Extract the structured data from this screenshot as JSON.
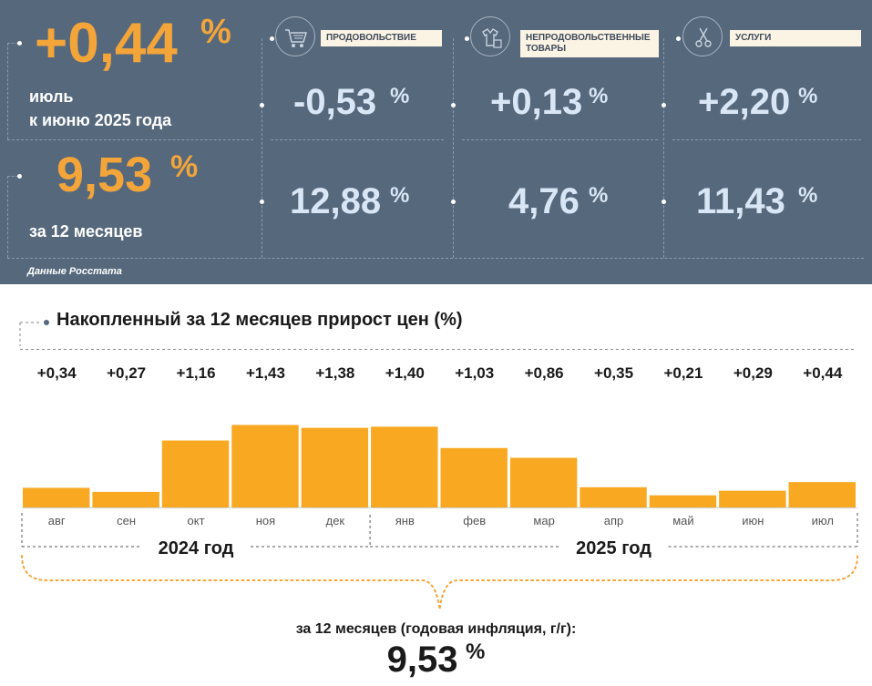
{
  "colors": {
    "panel_bg": "#56687c",
    "accent_orange": "#f3a53a",
    "light_value": "#d8e6f5",
    "bar": "#f9a822",
    "label_bg": "#fbf3e4"
  },
  "monthly": {
    "value": "+0,44",
    "unit": "%",
    "label_line1": "июль",
    "label_line2": "к июню 2025 года"
  },
  "annual": {
    "value": "9,53",
    "unit": "%",
    "label": "за 12 месяцев"
  },
  "categories": [
    {
      "name": "ПРОДОВОЛЬСТВИЕ",
      "icon": "shopping-cart-icon",
      "monthly": "-0,53",
      "annual": "12,88",
      "unit": "%"
    },
    {
      "name": "НЕПРОДОВОЛЬСТВЕННЫЕ ТОВАРЫ",
      "icon": "clothes-icon",
      "monthly": "+0,13",
      "annual": "4,76",
      "unit": "%"
    },
    {
      "name": "УСЛУГИ",
      "icon": "scissors-icon",
      "monthly": "+2,20",
      "annual": "11,43",
      "unit": "%"
    }
  ],
  "source": "Данные Росстата",
  "chart_data": {
    "type": "bar",
    "title": "Накопленный за 12 месяцев прирост цен (%)",
    "categories": [
      "авг",
      "сен",
      "окт",
      "ноя",
      "дек",
      "янв",
      "фев",
      "мар",
      "апр",
      "май",
      "июн",
      "июл"
    ],
    "values": [
      0.34,
      0.27,
      1.16,
      1.43,
      1.38,
      1.4,
      1.03,
      0.86,
      0.35,
      0.21,
      0.29,
      0.44
    ],
    "data_labels": [
      "+0,34",
      "+0,27",
      "+1,16",
      "+1,43",
      "+1,38",
      "+1,40",
      "+1,03",
      "+0,86",
      "+0,35",
      "+0,21",
      "+0,29",
      "+0,44"
    ],
    "year_groups": [
      {
        "label": "2024 год",
        "months": 5
      },
      {
        "label": "2025 год",
        "months": 7
      }
    ],
    "xlabel": "",
    "ylabel": "",
    "ylim": [
      0,
      1.5
    ],
    "grid": false
  },
  "footer": {
    "caption": "за 12 месяцев (годовая инфляция, г/г):",
    "value": "9,53",
    "unit": "%"
  }
}
